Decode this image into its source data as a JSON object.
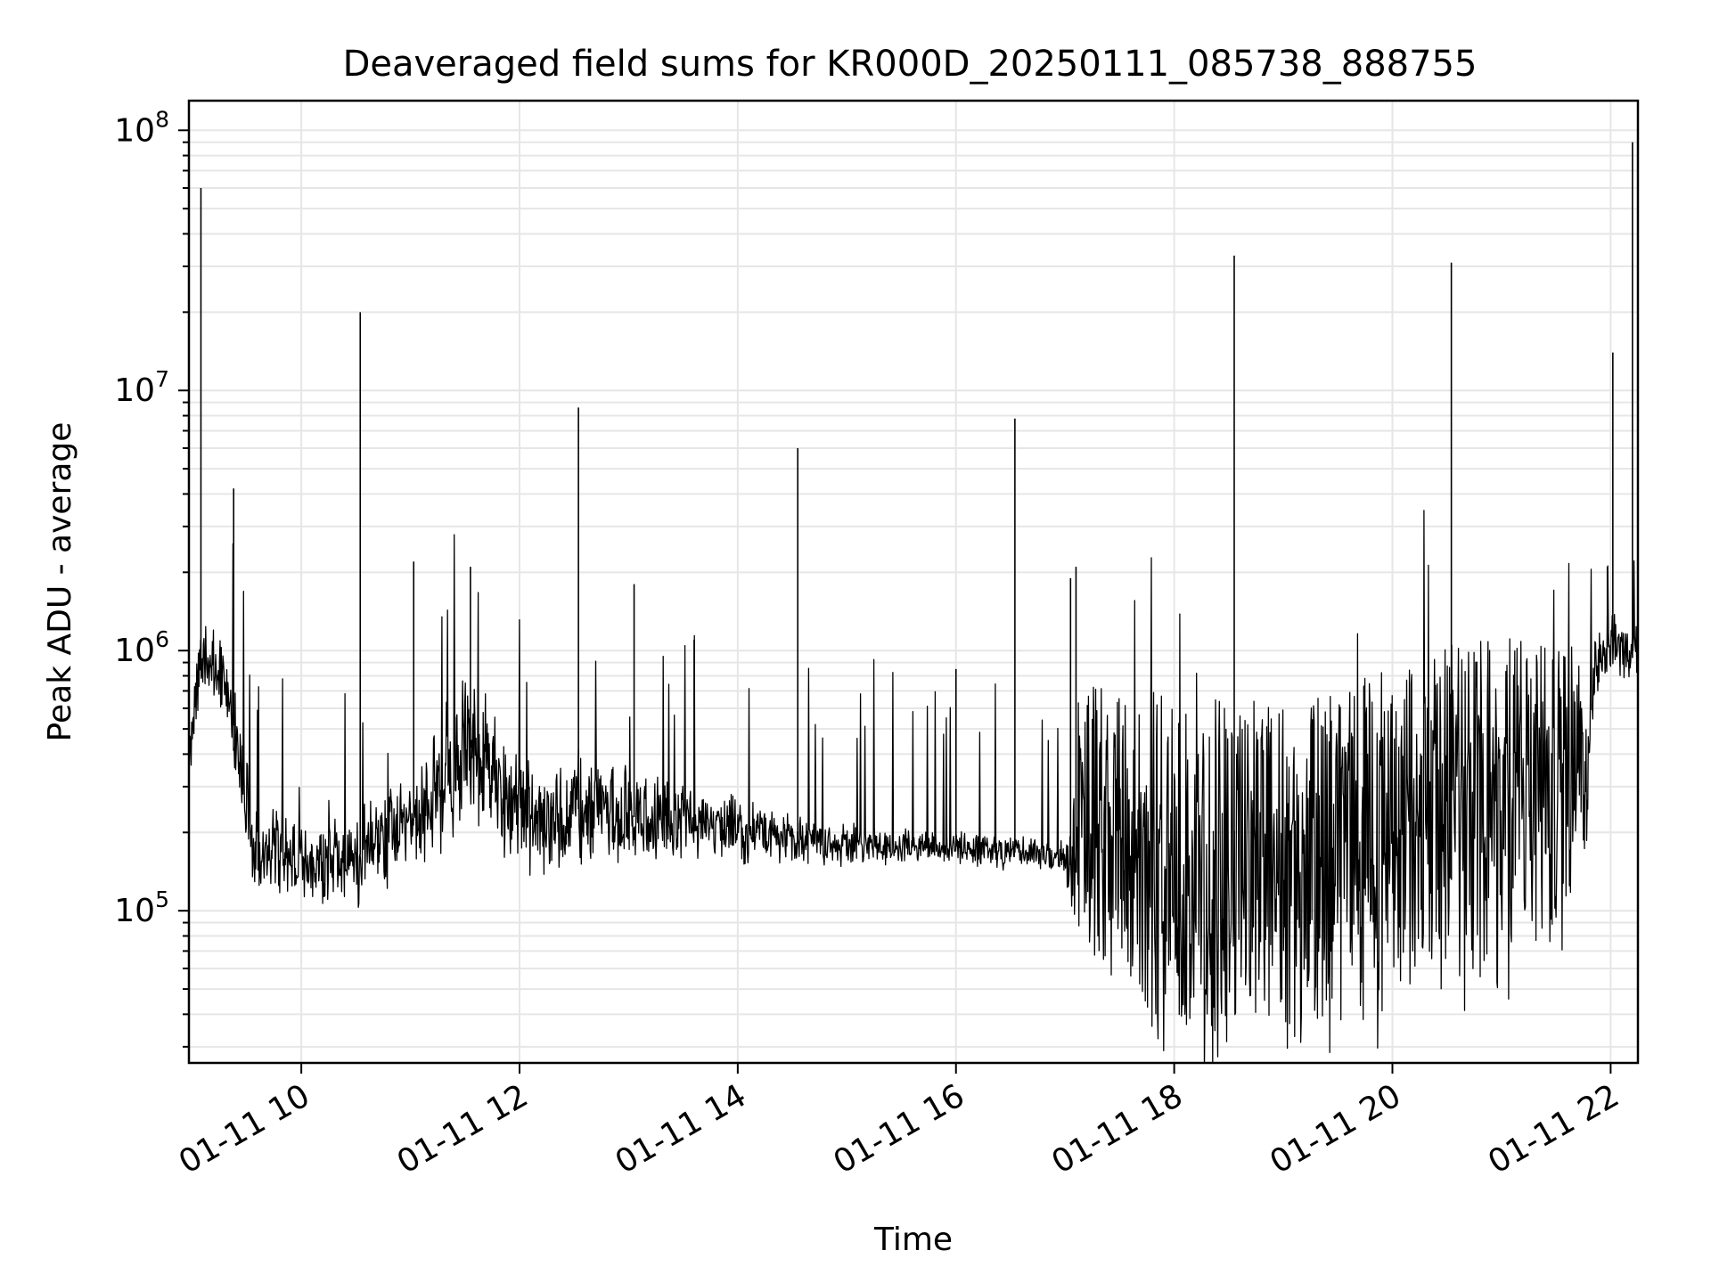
{
  "chart_data": {
    "type": "line",
    "title": "Deaveraged field sums for KR000D_20250111_085738_888755",
    "xlabel": "Time",
    "ylabel": "Peak ADU - average",
    "x_unit": "hour of 2025-01-11",
    "xlim": [
      8.97,
      22.25
    ],
    "ylim": [
      26000,
      130000000
    ],
    "yscale": "log",
    "grid": true,
    "line_color": "#000000",
    "grid_color": "#e6e6e6",
    "xticks": [
      {
        "value": 10,
        "label": "01-11 10"
      },
      {
        "value": 12,
        "label": "01-11 12"
      },
      {
        "value": 14,
        "label": "01-11 14"
      },
      {
        "value": 16,
        "label": "01-11 16"
      },
      {
        "value": 18,
        "label": "01-11 18"
      },
      {
        "value": 20,
        "label": "01-11 20"
      },
      {
        "value": 22,
        "label": "01-11 22"
      }
    ],
    "yticks": [
      {
        "value": 100000,
        "base": "10",
        "exp": "5"
      },
      {
        "value": 1000000,
        "base": "10",
        "exp": "6"
      },
      {
        "value": 10000000,
        "base": "10",
        "exp": "7"
      },
      {
        "value": 100000000,
        "base": "10",
        "exp": "8"
      }
    ],
    "series": [
      {
        "baseline": [
          [
            8.97,
            400000,
            1.5
          ],
          [
            9.1,
            1000000,
            1.5
          ],
          [
            9.3,
            800000,
            1.5
          ],
          [
            9.45,
            350000,
            1.6
          ],
          [
            9.55,
            180000,
            1.6
          ],
          [
            10.0,
            150000,
            1.5
          ],
          [
            10.5,
            160000,
            1.6
          ],
          [
            11.0,
            220000,
            1.8
          ],
          [
            11.3,
            300000,
            2.0
          ],
          [
            11.5,
            450000,
            2.2
          ],
          [
            11.7,
            350000,
            2.0
          ],
          [
            12.0,
            250000,
            1.8
          ],
          [
            12.3,
            230000,
            1.8
          ],
          [
            12.6,
            250000,
            1.8
          ],
          [
            13.0,
            230000,
            1.7
          ],
          [
            13.5,
            220000,
            1.5
          ],
          [
            14.0,
            205000,
            1.4
          ],
          [
            14.5,
            190000,
            1.3
          ],
          [
            15.0,
            180000,
            1.25
          ],
          [
            15.5,
            178000,
            1.2
          ],
          [
            16.0,
            175000,
            1.2
          ],
          [
            16.5,
            168000,
            1.2
          ],
          [
            17.0,
            160000,
            1.2
          ],
          [
            17.1,
            140000,
            3.0
          ],
          [
            17.5,
            110000,
            3.5
          ],
          [
            18.0,
            90000,
            4.0
          ],
          [
            18.5,
            85000,
            4.0
          ],
          [
            19.0,
            80000,
            4.0
          ],
          [
            19.5,
            90000,
            4.0
          ],
          [
            20.0,
            110000,
            4.0
          ],
          [
            20.5,
            130000,
            4.0
          ],
          [
            21.0,
            150000,
            4.0
          ],
          [
            21.5,
            160000,
            3.5
          ],
          [
            21.75,
            250000,
            2.5
          ],
          [
            21.85,
            800000,
            1.5
          ],
          [
            22.0,
            1100000,
            1.4
          ],
          [
            22.25,
            900000,
            1.4
          ]
        ],
        "spikes": [
          [
            9.08,
            60000000
          ],
          [
            9.38,
            4200000
          ],
          [
            10.54,
            20000000
          ],
          [
            11.03,
            2200000
          ],
          [
            11.55,
            2100000
          ],
          [
            12.54,
            8600000
          ],
          [
            13.05,
            1800000
          ],
          [
            13.6,
            1100000
          ],
          [
            14.55,
            6000000
          ],
          [
            16.0,
            850000
          ],
          [
            16.54,
            7800000
          ],
          [
            17.05,
            1900000
          ],
          [
            17.1,
            2100000
          ],
          [
            18.55,
            33000000
          ],
          [
            20.54,
            31000000
          ],
          [
            21.97,
            2100000
          ],
          [
            22.02,
            14000000
          ],
          [
            22.2,
            90000000
          ]
        ]
      }
    ]
  }
}
